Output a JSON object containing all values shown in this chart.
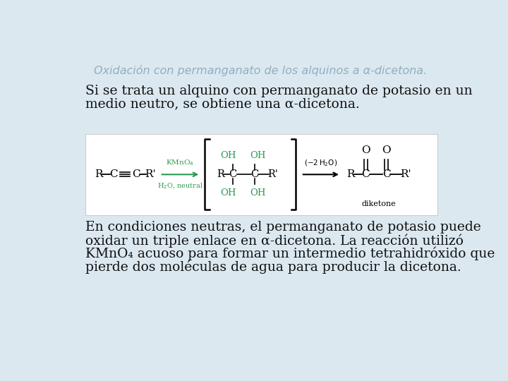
{
  "bg_color": "#dce8f0",
  "title_text": "Oxidación con permanganato de los alquinos a α-dicetona.",
  "title_color": "#8fafc0",
  "title_fontsize": 11.5,
  "para1_line1": "Si se trata un alquino con permanganato de potasio en un",
  "para1_line2": "medio neutro, se obtiene una α-dicetona.",
  "para1_fontsize": 13.5,
  "para2_line1": "En condiciones neutras, el permanganato de potasio puede",
  "para2_line2": "oxidar un triple enlace en α-dicetona. La reacción utilizó",
  "para2_line3": "KMnO₄ acuoso para formar un intermedio tetrahidróxido que",
  "para2_line4": "pierde dos moléculas de agua para producir la dicetona.",
  "para2_fontsize": 13.5,
  "text_color": "#111111",
  "green_color": "#2a9a50",
  "mol_fontsize": 11,
  "oh_fontsize": 9.5,
  "arrow_label_fontsize": 7.5
}
